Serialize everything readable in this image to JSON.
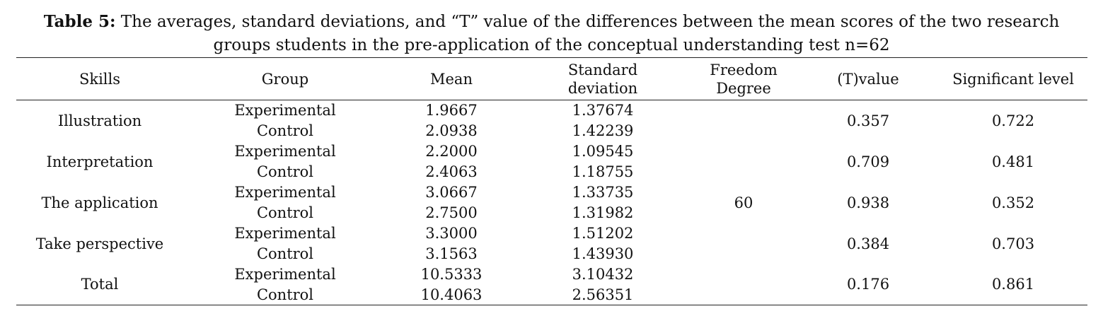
{
  "caption": {
    "label": "Table 5:",
    "text_line1": " The averages, standard deviations, and “T” value of the differences between the mean scores of the two research",
    "text_line2": "groups students in the pre-application of the conceptual understanding test n=62"
  },
  "headers": {
    "skills": "Skills",
    "group": "Group",
    "mean": "Mean",
    "sd_line1": "Standard",
    "sd_line2": "deviation",
    "df_line1": "Freedom",
    "df_line2": "Degree",
    "t_value": "(T)value",
    "sig": "Significant level"
  },
  "freedom_degree": "60",
  "rows": [
    {
      "skill": "Illustration",
      "g1": "Experimental",
      "m1": "1.9667",
      "sd1": "1.37674",
      "g2": "Control",
      "m2": "2.0938",
      "sd2": "1.42239",
      "t": "0.357",
      "sig": "0.722"
    },
    {
      "skill": "Interpretation",
      "g1": "Experimental",
      "m1": "2.2000",
      "sd1": "1.09545",
      "g2": "Control",
      "m2": "2.4063",
      "sd2": "1.18755",
      "t": "0.709",
      "sig": "0.481"
    },
    {
      "skill": "The application",
      "g1": "Experimental",
      "m1": "3.0667",
      "sd1": "1.33735",
      "g2": "Control",
      "m2": "2.7500",
      "sd2": "1.31982",
      "t": "0.938",
      "sig": "0.352"
    },
    {
      "skill": "Take perspective",
      "g1": "Experimental",
      "m1": "3.3000",
      "sd1": "1.51202",
      "g2": "Control",
      "m2": "3.1563",
      "sd2": "1.43930",
      "t": "0.384",
      "sig": "0.703"
    },
    {
      "skill": "Total",
      "g1": "Experimental",
      "m1": "10.5333",
      "sd1": "3.10432",
      "g2": "Control",
      "m2": "10.4063",
      "sd2": "2.56351",
      "t": "0.176",
      "sig": "0.861"
    }
  ]
}
